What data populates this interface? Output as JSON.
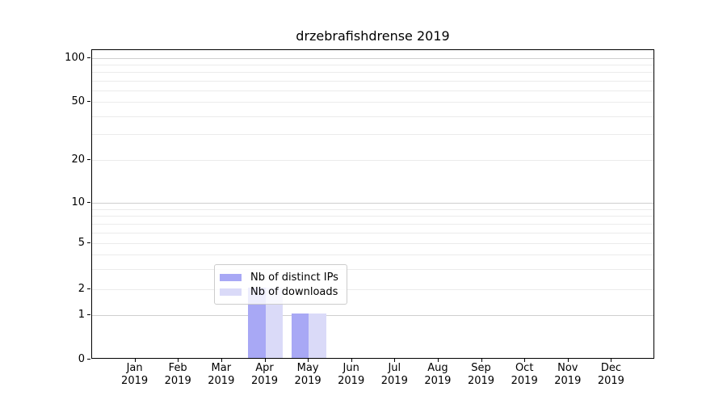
{
  "figure": {
    "title": "drzebrafishdrense 2019"
  },
  "chart_data": {
    "type": "bar",
    "title": "drzebrafishdrense 2019",
    "categories": [
      "Jan",
      "Feb",
      "Mar",
      "Apr",
      "May",
      "Jun",
      "Jul",
      "Aug",
      "Sep",
      "Oct",
      "Nov",
      "Dec"
    ],
    "category_year": "2019",
    "series": [
      {
        "name": "Nb of distinct IPs",
        "color": "#a8a8f5",
        "values": [
          0,
          0,
          0,
          2,
          1,
          0,
          0,
          0,
          0,
          0,
          0,
          0
        ]
      },
      {
        "name": "Nb of downloads",
        "color": "#dadaf8",
        "values": [
          0,
          0,
          0,
          2,
          1,
          0,
          0,
          0,
          0,
          0,
          0,
          0
        ]
      }
    ],
    "xlabel": "",
    "ylabel": "",
    "yscale": "symlog",
    "ylim": [
      0,
      114
    ],
    "yticks": [
      0,
      1,
      2,
      5,
      10,
      20,
      50,
      100
    ],
    "grid": {
      "major_values": [
        1,
        10,
        100
      ],
      "minor_values": [
        2,
        3,
        4,
        5,
        6,
        7,
        8,
        9,
        20,
        30,
        40,
        50,
        60,
        70,
        80,
        90
      ]
    },
    "legend": {
      "position": "lower-center",
      "entries": [
        "Nb of distinct IPs",
        "Nb of downloads"
      ]
    }
  }
}
